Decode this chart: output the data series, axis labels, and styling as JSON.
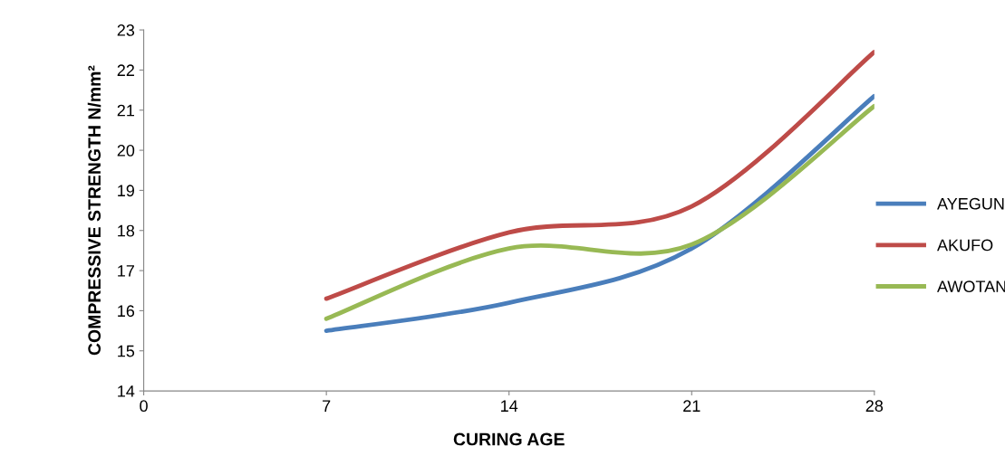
{
  "chart_data": {
    "type": "line",
    "xlabel": "CURING AGE",
    "ylabel": "COMPRESSIVE STRENGTH N/mm²",
    "x": [
      7,
      14,
      21,
      28
    ],
    "series": [
      {
        "name": "AYEGUN",
        "color": "#4a7ebb",
        "values": [
          15.5,
          16.2,
          17.55,
          21.35
        ]
      },
      {
        "name": "AKUFO",
        "color": "#be4b48",
        "values": [
          16.3,
          17.95,
          18.6,
          22.45
        ]
      },
      {
        "name": "AWOTAN",
        "color": "#98b954",
        "values": [
          15.8,
          17.55,
          17.65,
          21.1
        ]
      }
    ],
    "xlim": [
      0,
      28
    ],
    "xticks": [
      0,
      7,
      14,
      21,
      28
    ],
    "ylim": [
      14,
      23
    ],
    "yticks": [
      14,
      15,
      16,
      17,
      18,
      19,
      20,
      21,
      22,
      23
    ],
    "grid": false,
    "legend": "right",
    "marker": "none",
    "line_style": "solid"
  }
}
